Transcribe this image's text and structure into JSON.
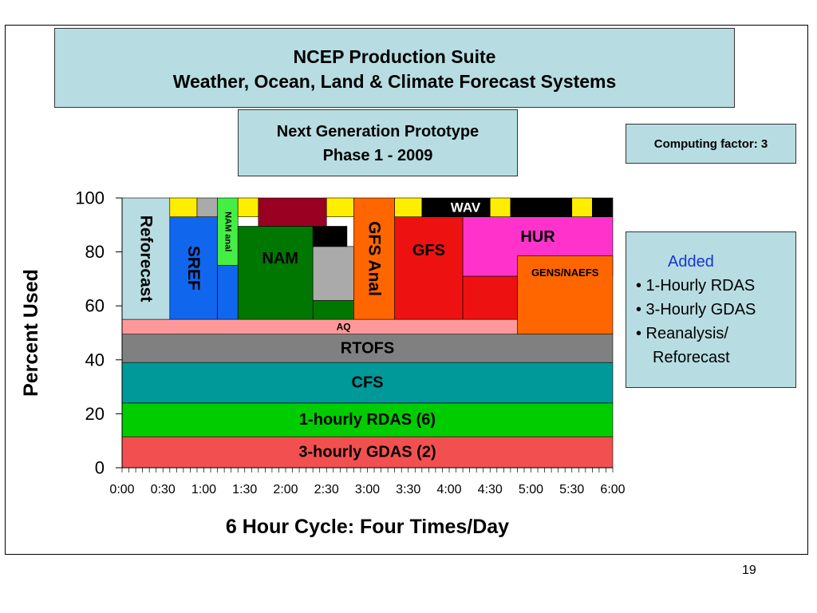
{
  "header": {
    "title_line1": "NCEP Production Suite",
    "title_line2": "Weather, Ocean, Land & Climate Forecast Systems"
  },
  "prototype": {
    "line1": "Next Generation Prototype",
    "line2": "Phase 1 - 2009"
  },
  "computing_factor": "Computing factor: 3",
  "added": {
    "heading": "Added",
    "items": [
      "• 1-Hourly RDAS",
      "• 3-Hourly GDAS",
      "• Reanalysis/",
      "Reforecast"
    ]
  },
  "page_number": "19",
  "colors": {
    "box_fill": "#b7dde2",
    "gdas": "#f25050",
    "rdas": "#00cc00",
    "cfs": "#009999",
    "rtofs": "#808080",
    "aq": "#ff9999",
    "reforecast": "#b7dde2",
    "sref": "#1166ee",
    "nam_anal": "#44ee44",
    "nam": "#007700",
    "gfs_anal": "#ff6600",
    "gfs": "#ee1111",
    "hur": "#ff33cc",
    "gens_naefs": "#ff6600",
    "yellow": "#ffee00",
    "gray": "#aaaaaa",
    "maroon": "#990022",
    "black": "#000000"
  },
  "chart_data": {
    "type": "bar",
    "stacked": true,
    "title": "",
    "xlabel": "6 Hour Cycle: Four Times/Day",
    "ylabel": "Percent Used",
    "x_range": [
      "0:00",
      "6:00"
    ],
    "xlim_minutes": [
      0,
      360
    ],
    "ylim": [
      0,
      100
    ],
    "yticks": [
      0,
      20,
      40,
      60,
      80,
      100
    ],
    "xticks": [
      "0:00",
      "0:30",
      "1:00",
      "1:30",
      "2:00",
      "2:30",
      "3:00",
      "3:30",
      "4:00",
      "4:30",
      "5:00",
      "5:30",
      "6:00"
    ],
    "segments": [
      {
        "label": "3-hourly GDAS (2)",
        "x0": "0:00",
        "x1": "6:00",
        "y0": 0,
        "y1": 11.5,
        "color": "gdas"
      },
      {
        "label": "1-hourly RDAS (6)",
        "x0": "0:00",
        "x1": "6:00",
        "y0": 11.5,
        "y1": 24,
        "color": "rdas"
      },
      {
        "label": "CFS",
        "x0": "0:00",
        "x1": "6:00",
        "y0": 24,
        "y1": 39,
        "color": "cfs"
      },
      {
        "label": "RTOFS",
        "x0": "0:00",
        "x1": "6:00",
        "y0": 39,
        "y1": 49.5,
        "color": "rtofs"
      },
      {
        "label": "AQ",
        "x0": "0:00",
        "x1": "5:25",
        "y0": 49.5,
        "y1": 55,
        "color": "aq"
      },
      {
        "label": "Reforecast",
        "x0": "0:00",
        "x1": "0:35",
        "y0": 55,
        "y1": 100,
        "color": "reforecast"
      },
      {
        "label": "SREF",
        "x0": "0:35",
        "x1": "1:10",
        "y0": 55,
        "y1": 93,
        "color": "sref"
      },
      {
        "label": "",
        "x0": "1:10",
        "x1": "1:25",
        "y0": 55,
        "y1": 75,
        "color": "sref"
      },
      {
        "label": "NAM anal",
        "x0": "1:10",
        "x1": "1:25",
        "y0": 75,
        "y1": 100,
        "color": "nam_anal"
      },
      {
        "label": "NAM",
        "x0": "1:25",
        "x1": "2:20",
        "y0": 55,
        "y1": 89.5,
        "color": "nam"
      },
      {
        "label": "",
        "x0": "2:20",
        "x1": "2:50",
        "y0": 55,
        "y1": 62,
        "color": "nam"
      },
      {
        "label": "",
        "x0": "2:20",
        "x1": "2:50",
        "y0": 62,
        "y1": 82,
        "color": "gray"
      },
      {
        "label": "",
        "x0": "2:20",
        "x1": "2:45",
        "y0": 82,
        "y1": 89.5,
        "color": "black"
      },
      {
        "label": "GFS Anal",
        "x0": "2:50",
        "x1": "3:20",
        "y0": 55,
        "y1": 100,
        "color": "gfs_anal"
      },
      {
        "label": "GFS",
        "x0": "3:20",
        "x1": "4:10",
        "y0": 55,
        "y1": 93,
        "color": "gfs"
      },
      {
        "label": "",
        "x0": "4:10",
        "x1": "4:50",
        "y0": 55,
        "y1": 71,
        "color": "gfs"
      },
      {
        "label": "HUR",
        "x0": "4:10",
        "x1": "6:00",
        "y0": 71,
        "y1": 93,
        "color": "hur"
      },
      {
        "label": "GENS/NAEFS",
        "x0": "4:50",
        "x1": "6:00",
        "y0": 49.5,
        "y1": 78.5,
        "color": "gens_naefs"
      },
      {
        "label": "",
        "x0": "0:35",
        "x1": "0:55",
        "y0": 93,
        "y1": 100,
        "color": "yellow"
      },
      {
        "label": "",
        "x0": "0:55",
        "x1": "1:10",
        "y0": 93,
        "y1": 100,
        "color": "gray"
      },
      {
        "label": "",
        "x0": "1:25",
        "x1": "1:40",
        "y0": 93,
        "y1": 100,
        "color": "yellow"
      },
      {
        "label": "",
        "x0": "1:40",
        "x1": "2:30",
        "y0": 89.5,
        "y1": 100,
        "color": "maroon"
      },
      {
        "label": "",
        "x0": "2:30",
        "x1": "2:50",
        "y0": 93,
        "y1": 100,
        "color": "yellow"
      },
      {
        "label": "",
        "x0": "2:50",
        "x1": "3:20",
        "y0": 100,
        "y1": 100,
        "color": "gray"
      },
      {
        "label": "",
        "x0": "3:20",
        "x1": "3:40",
        "y0": 93,
        "y1": 100,
        "color": "yellow"
      },
      {
        "label": "WAV",
        "x0": "3:40",
        "x1": "4:30",
        "y0": 93,
        "y1": 100,
        "color": "black"
      },
      {
        "label": "",
        "x0": "4:30",
        "x1": "4:45",
        "y0": 93,
        "y1": 100,
        "color": "yellow"
      },
      {
        "label": "",
        "x0": "4:45",
        "x1": "5:30",
        "y0": 93,
        "y1": 100,
        "color": "black"
      },
      {
        "label": "",
        "x0": "5:30",
        "x1": "5:45",
        "y0": 93,
        "y1": 100,
        "color": "yellow"
      },
      {
        "label": "",
        "x0": "5:45",
        "x1": "6:00",
        "y0": 93,
        "y1": 100,
        "color": "black"
      }
    ]
  }
}
